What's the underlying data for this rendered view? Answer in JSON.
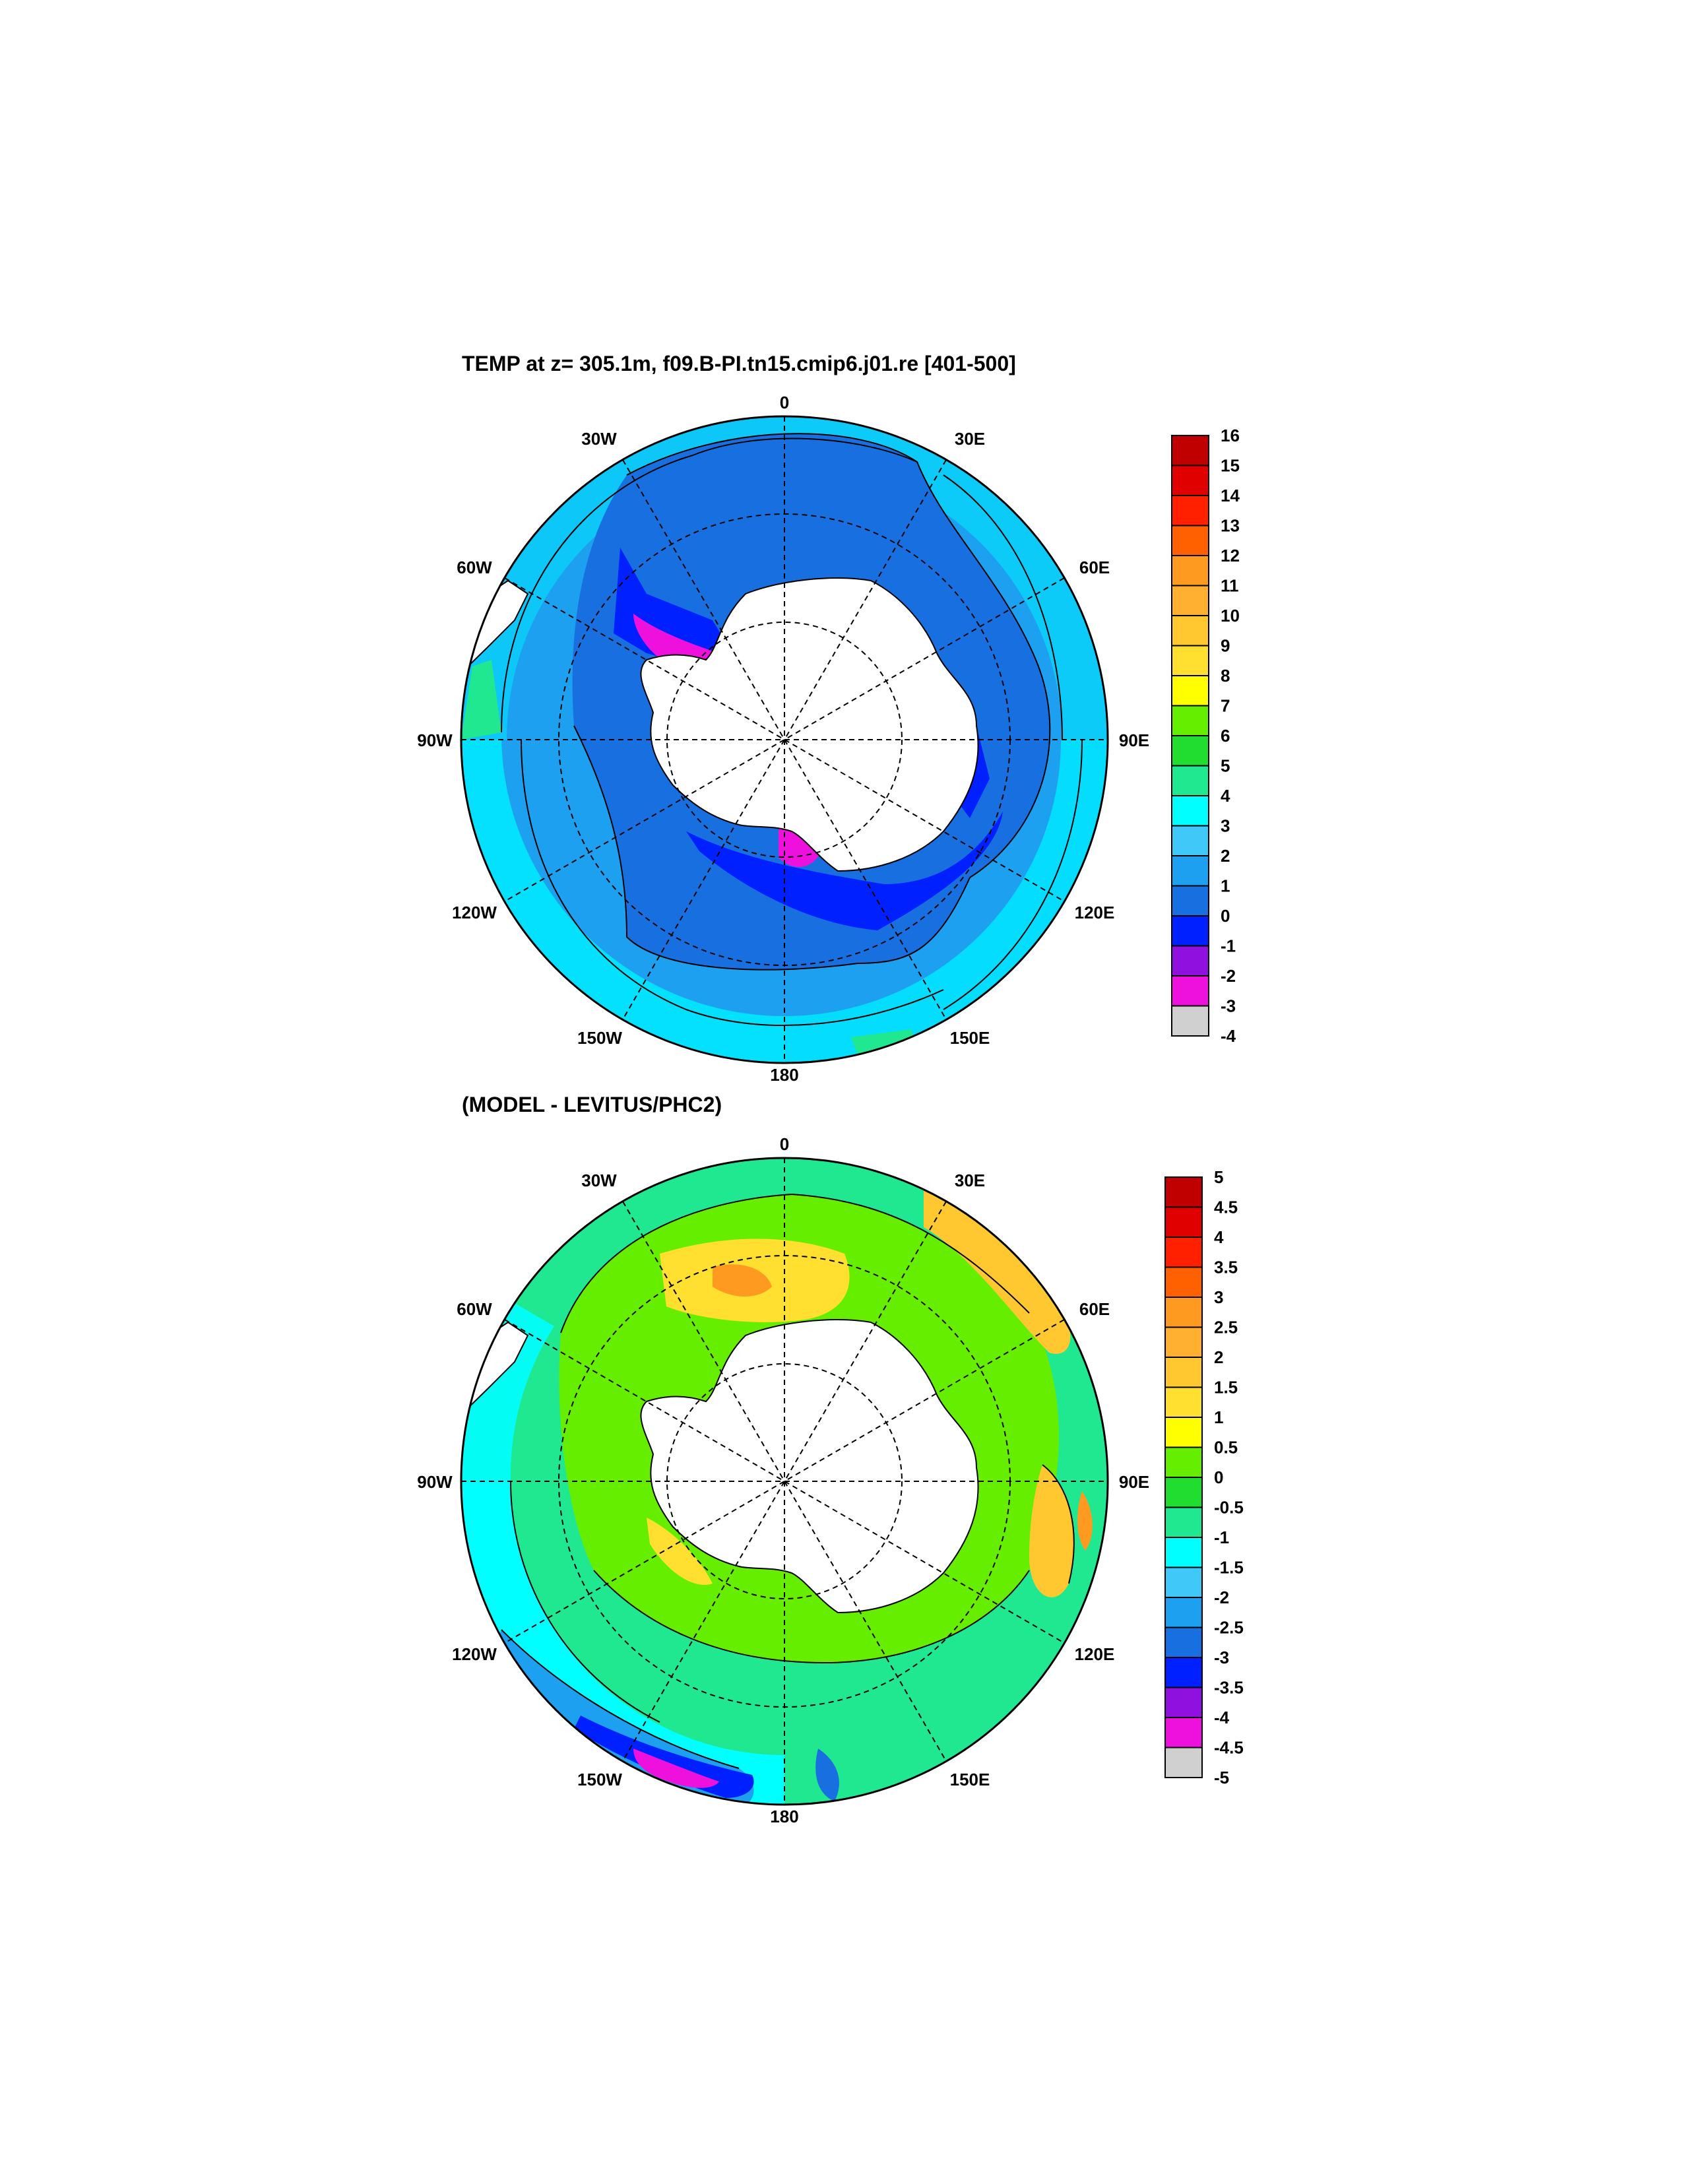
{
  "panels": [
    {
      "title": "TEMP at z= 305.1m, f09.B-PI.tn15.cmip6.j01.re [401-500]",
      "lon_labels": [
        "0",
        "30E",
        "60E",
        "90E",
        "120E",
        "150E",
        "180",
        "150W",
        "120W",
        "90W",
        "60W",
        "30W"
      ],
      "colorbar": {
        "labels": [
          "16",
          "15",
          "14",
          "13",
          "12",
          "11",
          "10",
          "9",
          "8",
          "7",
          "6",
          "5",
          "4",
          "3",
          "2",
          "1",
          "0",
          "-1",
          "-2",
          "-3",
          "-4"
        ],
        "colors": [
          "#c00000",
          "#e00000",
          "#ff2000",
          "#ff6000",
          "#ff9a20",
          "#ffb030",
          "#ffc830",
          "#ffe030",
          "#ffff00",
          "#66ee00",
          "#20dd30",
          "#20e890",
          "#00ffff",
          "#40c8f8",
          "#1ea0f0",
          "#1870e0",
          "#0020ff",
          "#9010e0",
          "#ee10dd",
          "#d0d0d0",
          "#707070"
        ]
      }
    },
    {
      "title": "(MODEL - LEVITUS/PHC2)",
      "lon_labels": [
        "0",
        "30E",
        "60E",
        "90E",
        "120E",
        "150E",
        "180",
        "150W",
        "120W",
        "90W",
        "60W",
        "30W"
      ],
      "colorbar": {
        "labels": [
          "5",
          "4.5",
          "4",
          "3.5",
          "3",
          "2.5",
          "2",
          "1.5",
          "1",
          "0.5",
          "0",
          "-0.5",
          "-1",
          "-1.5",
          "-2",
          "-2.5",
          "-3",
          "-3.5",
          "-4",
          "-4.5",
          "-5"
        ],
        "colors": [
          "#c00000",
          "#e00000",
          "#ff2000",
          "#ff6000",
          "#ff9a20",
          "#ffb030",
          "#ffc830",
          "#ffe030",
          "#ffff00",
          "#66ee00",
          "#20dd30",
          "#20e890",
          "#00ffff",
          "#40c8f8",
          "#1ea0f0",
          "#1870e0",
          "#0020ff",
          "#9010e0",
          "#ee10dd",
          "#d0d0d0",
          "#707070"
        ]
      }
    }
  ]
}
